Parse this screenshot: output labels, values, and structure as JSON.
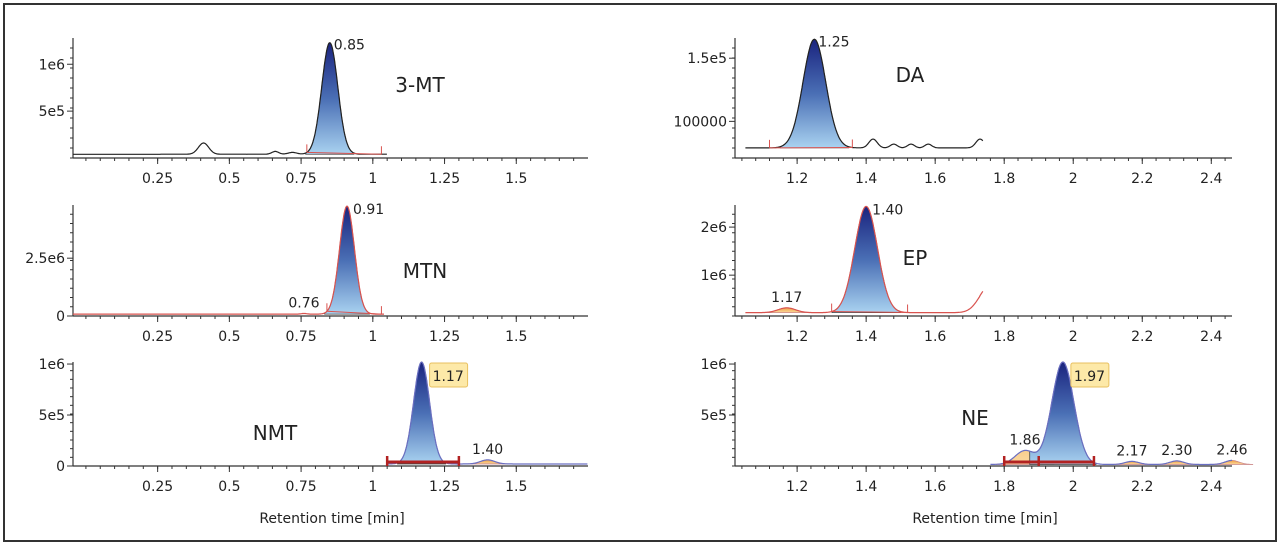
{
  "chart_data": {
    "type": "line",
    "xlabel": "Retention time [min]",
    "panels": [
      {
        "name": "3-MT",
        "trace_color": "#222222",
        "xlim": [
          -0.045,
          1.75
        ],
        "ylim": [
          0,
          1280000
        ],
        "xticks": [
          0.25,
          0.5,
          0.75,
          1,
          1.25,
          1.5
        ],
        "xtick_labels": [
          "0.25",
          "0.5",
          "0.75",
          "1",
          "1.25",
          "1.5"
        ],
        "yticks": [
          500000,
          1000000
        ],
        "ytick_labels": [
          "5e5",
          "1e6"
        ],
        "trace_range": [
          -0.045,
          1.05
        ],
        "baseline": 40000,
        "peaks": [
          {
            "rt": 0.41,
            "height": 160000,
            "width": 0.018
          },
          {
            "rt": 0.66,
            "height": 30000,
            "width": 0.012
          },
          {
            "rt": 0.72,
            "height": 60000,
            "width": 0.015
          },
          {
            "rt": 0.85,
            "height": 1230000,
            "width": 0.028,
            "label": "0.85",
            "main": true
          }
        ],
        "integration": [
          0.77,
          1.03
        ]
      },
      {
        "name": "DA",
        "trace_color": "#222222",
        "xlim": [
          1.02,
          2.46
        ],
        "ylim": [
          71000,
          166000
        ],
        "xticks": [
          1.2,
          1.4,
          1.6,
          1.8,
          2,
          2.2,
          2.4
        ],
        "xtick_labels": [
          "1.2",
          "1.4",
          "1.6",
          "1.8",
          "2",
          "2.2",
          "2.4"
        ],
        "yticks": [
          100000,
          150000
        ],
        "ytick_labels": [
          "100000",
          "1.5e5"
        ],
        "trace_range": [
          1.05,
          1.74
        ],
        "baseline": 79000,
        "peaks": [
          {
            "rt": 1.25,
            "height": 165000,
            "width": 0.033,
            "label": "1.25",
            "main": true
          },
          {
            "rt": 1.42,
            "height": 86000,
            "width": 0.012
          },
          {
            "rt": 1.48,
            "height": 82000,
            "width": 0.01
          },
          {
            "rt": 1.53,
            "height": 82000,
            "width": 0.01
          },
          {
            "rt": 1.58,
            "height": 82000,
            "width": 0.01
          },
          {
            "rt": 1.73,
            "height": 86000,
            "width": 0.012
          }
        ],
        "integration": [
          1.12,
          1.36
        ]
      },
      {
        "name": "MTN",
        "trace_color": "#d9534f",
        "xlim": [
          -0.045,
          1.75
        ],
        "ylim": [
          0,
          4800000
        ],
        "xticks": [
          0.25,
          0.5,
          0.75,
          1,
          1.25,
          1.5
        ],
        "xtick_labels": [
          "0.25",
          "0.5",
          "0.75",
          "1",
          "1.25",
          "1.5"
        ],
        "yticks": [
          0,
          2500000
        ],
        "ytick_labels": [
          "0",
          "2.5e6"
        ],
        "trace_range": [
          -0.045,
          1.04
        ],
        "baseline": 80000,
        "peaks": [
          {
            "rt": 0.76,
            "height": 110000,
            "width": 0.01,
            "label": "0.76"
          },
          {
            "rt": 0.91,
            "height": 4750000,
            "width": 0.026,
            "label": "0.91",
            "main": true
          }
        ],
        "integration": [
          0.84,
          1.03
        ]
      },
      {
        "name": "EP",
        "trace_color": "#d9534f",
        "xlim": [
          1.02,
          2.46
        ],
        "ylim": [
          150000,
          2460000
        ],
        "xticks": [
          1.2,
          1.4,
          1.6,
          1.8,
          2,
          2.2,
          2.4
        ],
        "xtick_labels": [
          "1.2",
          "1.4",
          "1.6",
          "1.8",
          "2",
          "2.2",
          "2.4"
        ],
        "yticks": [
          1000000,
          2000000
        ],
        "ytick_labels": [
          "1e6",
          "2e6"
        ],
        "trace_range": [
          1.05,
          1.74
        ],
        "baseline": 220000,
        "peaks": [
          {
            "rt": 1.17,
            "height": 320000,
            "width": 0.025,
            "label": "1.17",
            "minor": true
          },
          {
            "rt": 1.4,
            "height": 2430000,
            "width": 0.033,
            "label": "1.40",
            "main": true
          },
          {
            "rt": 1.76,
            "height": 800000,
            "width": 0.03
          }
        ],
        "integration": [
          1.3,
          1.52
        ]
      },
      {
        "name": "NMT",
        "trace_color": "#6a6fc2",
        "xlim": [
          -0.045,
          1.75
        ],
        "ylim": [
          0,
          1020000
        ],
        "xticks": [
          0.25,
          0.5,
          0.75,
          1,
          1.25,
          1.5
        ],
        "xtick_labels": [
          "0.25",
          "0.5",
          "0.75",
          "1",
          "1.25",
          "1.5"
        ],
        "yticks": [
          0,
          500000,
          1000000
        ],
        "ytick_labels": [
          "0",
          "5e5",
          "1e6"
        ],
        "trace_range": [
          1.05,
          1.75
        ],
        "baseline": 20000,
        "peaks": [
          {
            "rt": 1.17,
            "height": 1020000,
            "width": 0.028,
            "label": "1.17",
            "main": true,
            "highlight": true
          },
          {
            "rt": 1.4,
            "height": 60000,
            "width": 0.025,
            "label": "1.40",
            "minor": true
          }
        ],
        "integration_bar": [
          1.05,
          1.3
        ]
      },
      {
        "name": "NE",
        "trace_color": "#6a6fc2",
        "xlim": [
          1.02,
          2.46
        ],
        "ylim": [
          0,
          1020000
        ],
        "xticks": [
          1.2,
          1.4,
          1.6,
          1.8,
          2,
          2.2,
          2.4
        ],
        "xtick_labels": [
          "1.2",
          "1.4",
          "1.6",
          "1.8",
          "2",
          "2.2",
          "2.4"
        ],
        "yticks": [
          500000,
          1000000
        ],
        "ytick_labels": [
          "5e5",
          "1e6"
        ],
        "trace_range": [
          1.76,
          2.46
        ],
        "baseline": 15000,
        "peaks": [
          {
            "rt": 1.86,
            "height": 150000,
            "width": 0.028,
            "label": "1.86",
            "minor": true
          },
          {
            "rt": 1.97,
            "height": 1020000,
            "width": 0.032,
            "label": "1.97",
            "main": true,
            "highlight": true
          },
          {
            "rt": 2.17,
            "height": 45000,
            "width": 0.02,
            "label": "2.17",
            "minor": true
          },
          {
            "rt": 2.3,
            "height": 50000,
            "width": 0.02,
            "label": "2.30",
            "minor": true
          },
          {
            "rt": 2.46,
            "height": 55000,
            "width": 0.02,
            "label": "2.46",
            "minor": true
          }
        ],
        "integration_bar": [
          1.8,
          2.06
        ],
        "integration_split": 1.9
      }
    ]
  }
}
